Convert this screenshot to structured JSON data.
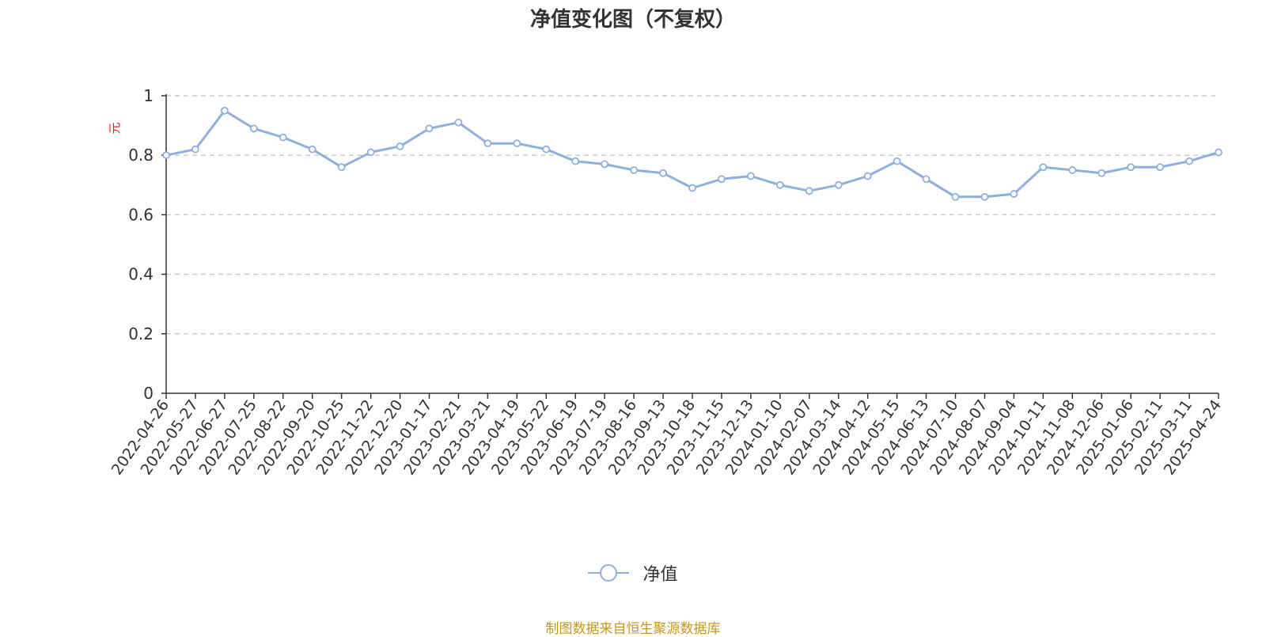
{
  "chart_data": {
    "type": "line",
    "title": "净值变化图（不复权）",
    "ylabel": "元",
    "ylim": [
      0,
      1
    ],
    "yticks": [
      "0",
      "0.2",
      "0.4",
      "0.6",
      "0.8",
      "1"
    ],
    "grid": true,
    "legend_position": "bottom-center",
    "x_tick_labels": [
      "2022-04-26",
      "2022-05-27",
      "2022-06-27",
      "2022-07-25",
      "2022-08-22",
      "2022-09-20",
      "2022-10-25",
      "2022-11-22",
      "2022-12-20",
      "2023-01-17",
      "2023-02-21",
      "2023-03-21",
      "2023-04-19",
      "2023-05-22",
      "2023-06-19",
      "2023-07-19",
      "2023-08-16",
      "2023-09-13",
      "2023-10-18",
      "2023-11-15",
      "2023-12-13",
      "2024-01-10",
      "2024-02-07",
      "2024-03-14",
      "2024-04-12",
      "2024-05-15",
      "2024-06-13",
      "2024-07-10",
      "2024-08-07",
      "2024-09-04",
      "2024-10-11",
      "2024-11-08",
      "2024-12-06",
      "2025-01-06",
      "2025-02-11",
      "2025-03-11",
      "2025-04-24"
    ],
    "series": [
      {
        "name": "净值",
        "color": "#8eb0de",
        "x": [
          "2022-04-26",
          "2022-05-27",
          "2022-06-27",
          "2022-07-25",
          "2022-08-22",
          "2022-09-20",
          "2022-10-25",
          "2022-11-22",
          "2022-12-20",
          "2023-01-17",
          "2023-02-21",
          "2023-03-21",
          "2023-04-19",
          "2023-05-22",
          "2023-06-19",
          "2023-07-19",
          "2023-08-16",
          "2023-09-13",
          "2023-10-18",
          "2023-11-15",
          "2023-12-13",
          "2024-01-10",
          "2024-02-07",
          "2024-03-14",
          "2024-04-12",
          "2024-05-15",
          "2024-06-13",
          "2024-07-10",
          "2024-08-07",
          "2024-09-04",
          "2024-10-11",
          "2024-11-08",
          "2024-12-06",
          "2025-01-06",
          "2025-02-11",
          "2025-03-11",
          "2025-04-24"
        ],
        "values": [
          0.8,
          0.82,
          0.95,
          0.89,
          0.86,
          0.82,
          0.76,
          0.81,
          0.83,
          0.89,
          0.91,
          0.84,
          0.84,
          0.82,
          0.78,
          0.77,
          0.75,
          0.74,
          0.69,
          0.72,
          0.73,
          0.7,
          0.68,
          0.7,
          0.73,
          0.78,
          0.72,
          0.66,
          0.66,
          0.67,
          0.76,
          0.75,
          0.74,
          0.76,
          0.76,
          0.78,
          0.81
        ]
      }
    ]
  },
  "legend": {
    "label": "净值"
  },
  "source_note": "制图数据来自恒生聚源数据库"
}
